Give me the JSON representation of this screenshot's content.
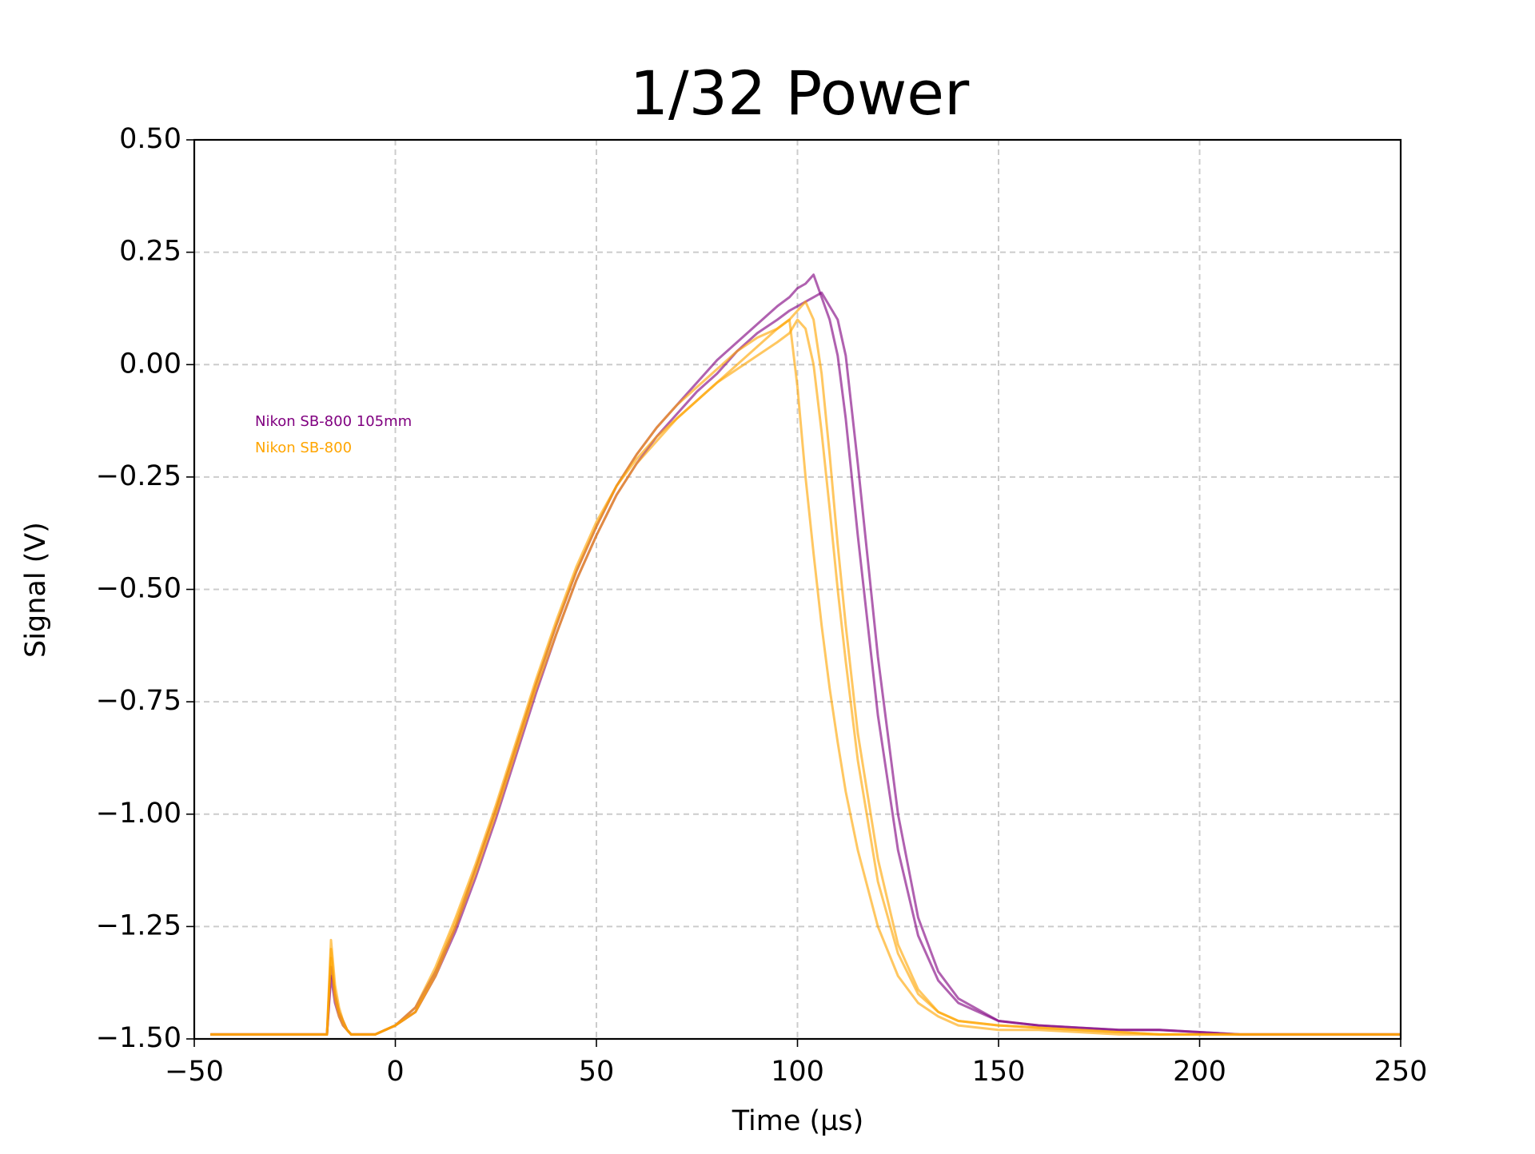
{
  "chart_data": {
    "type": "line",
    "title": "1/32 Power",
    "xlabel": "Time (µs)",
    "ylabel": "Signal (V)",
    "grid": true,
    "xlim": [
      -50,
      250
    ],
    "ylim": [
      -1.5,
      0.5
    ],
    "xticks": [
      {
        "value": -50,
        "label": "−50"
      },
      0,
      50,
      100,
      150,
      200,
      250
    ],
    "yticks": [
      {
        "value": -1.5,
        "label": "−1.50"
      },
      {
        "value": -1.25,
        "label": "−1.25"
      },
      {
        "value": -1.0,
        "label": "−1.00"
      },
      {
        "value": -0.75,
        "label": "−0.75"
      },
      {
        "value": -0.5,
        "label": "−0.50"
      },
      {
        "value": -0.25,
        "label": "−0.25"
      },
      {
        "value": 0,
        "label": "0.00"
      },
      {
        "value": 0.25,
        "label": "0.25"
      },
      {
        "value": 0.5,
        "label": "0.50"
      }
    ],
    "x": [
      -46,
      -20,
      -17,
      -16,
      -15,
      -14,
      -13,
      -12,
      -11,
      -10,
      -5,
      0,
      5,
      10,
      15,
      20,
      25,
      30,
      35,
      40,
      45,
      50,
      55,
      60,
      65,
      70,
      75,
      80,
      85,
      90,
      95,
      98,
      100,
      102,
      104,
      106,
      108,
      110,
      112,
      115,
      120,
      125,
      130,
      135,
      140,
      150,
      160,
      170,
      180,
      190,
      200,
      210,
      220,
      230,
      240,
      250
    ],
    "series": [
      {
        "name": "Nikon SB-800 105mm",
        "color": "#800080",
        "traces": [
          [
            -1.49,
            -1.49,
            -1.49,
            -1.34,
            -1.4,
            -1.44,
            -1.46,
            -1.48,
            -1.49,
            -1.49,
            -1.49,
            -1.47,
            -1.43,
            -1.35,
            -1.25,
            -1.12,
            -0.99,
            -0.85,
            -0.71,
            -0.58,
            -0.46,
            -0.36,
            -0.27,
            -0.2,
            -0.14,
            -0.09,
            -0.04,
            0.01,
            0.05,
            0.09,
            0.13,
            0.15,
            0.17,
            0.18,
            0.2,
            0.15,
            0.1,
            0.02,
            -0.12,
            -0.38,
            -0.78,
            -1.08,
            -1.27,
            -1.37,
            -1.42,
            -1.46,
            -1.47,
            -1.475,
            -1.48,
            -1.48,
            -1.485,
            -1.49,
            -1.49,
            -1.49,
            -1.49,
            -1.49
          ],
          [
            -1.49,
            -1.49,
            -1.49,
            -1.36,
            -1.42,
            -1.45,
            -1.47,
            -1.48,
            -1.49,
            -1.49,
            -1.49,
            -1.47,
            -1.44,
            -1.36,
            -1.26,
            -1.14,
            -1.01,
            -0.87,
            -0.73,
            -0.6,
            -0.48,
            -0.38,
            -0.29,
            -0.22,
            -0.16,
            -0.11,
            -0.06,
            -0.02,
            0.03,
            0.07,
            0.1,
            0.12,
            0.13,
            0.14,
            0.15,
            0.16,
            0.13,
            0.1,
            0.02,
            -0.22,
            -0.65,
            -1.0,
            -1.23,
            -1.35,
            -1.41,
            -1.46,
            -1.47,
            -1.475,
            -1.48,
            -1.48,
            -1.485,
            -1.49,
            -1.49,
            -1.49,
            -1.49,
            -1.49
          ]
        ]
      },
      {
        "name": "Nikon SB-800",
        "color": "#ffa500",
        "traces": [
          [
            -1.49,
            -1.49,
            -1.49,
            -1.28,
            -1.38,
            -1.43,
            -1.46,
            -1.48,
            -1.49,
            -1.49,
            -1.49,
            -1.47,
            -1.43,
            -1.34,
            -1.23,
            -1.11,
            -0.98,
            -0.84,
            -0.7,
            -0.57,
            -0.45,
            -0.35,
            -0.27,
            -0.21,
            -0.16,
            -0.12,
            -0.08,
            -0.04,
            0.0,
            0.04,
            0.08,
            0.1,
            -0.05,
            -0.25,
            -0.42,
            -0.58,
            -0.72,
            -0.84,
            -0.95,
            -1.08,
            -1.25,
            -1.36,
            -1.42,
            -1.45,
            -1.47,
            -1.48,
            -1.48,
            -1.485,
            -1.49,
            -1.49,
            -1.49,
            -1.49,
            -1.49,
            -1.49,
            -1.49,
            -1.49
          ],
          [
            -1.49,
            -1.49,
            -1.49,
            -1.3,
            -1.4,
            -1.44,
            -1.46,
            -1.48,
            -1.49,
            -1.49,
            -1.49,
            -1.47,
            -1.44,
            -1.36,
            -1.25,
            -1.13,
            -1.0,
            -0.86,
            -0.72,
            -0.6,
            -0.48,
            -0.38,
            -0.29,
            -0.22,
            -0.17,
            -0.12,
            -0.08,
            -0.04,
            -0.01,
            0.02,
            0.05,
            0.07,
            0.1,
            0.08,
            0.0,
            -0.15,
            -0.32,
            -0.5,
            -0.66,
            -0.88,
            -1.15,
            -1.31,
            -1.4,
            -1.44,
            -1.46,
            -1.47,
            -1.475,
            -1.48,
            -1.485,
            -1.49,
            -1.49,
            -1.49,
            -1.49,
            -1.49,
            -1.49,
            -1.49
          ],
          [
            -1.49,
            -1.49,
            -1.49,
            -1.32,
            -1.41,
            -1.45,
            -1.47,
            -1.48,
            -1.49,
            -1.49,
            -1.49,
            -1.47,
            -1.44,
            -1.35,
            -1.24,
            -1.12,
            -0.99,
            -0.85,
            -0.71,
            -0.58,
            -0.46,
            -0.36,
            -0.27,
            -0.2,
            -0.14,
            -0.09,
            -0.05,
            -0.01,
            0.03,
            0.06,
            0.08,
            0.1,
            0.12,
            0.14,
            0.1,
            -0.02,
            -0.2,
            -0.4,
            -0.58,
            -0.82,
            -1.1,
            -1.29,
            -1.39,
            -1.44,
            -1.46,
            -1.47,
            -1.475,
            -1.48,
            -1.485,
            -1.49,
            -1.49,
            -1.49,
            -1.49,
            -1.49,
            -1.49,
            -1.49
          ]
        ]
      }
    ]
  }
}
